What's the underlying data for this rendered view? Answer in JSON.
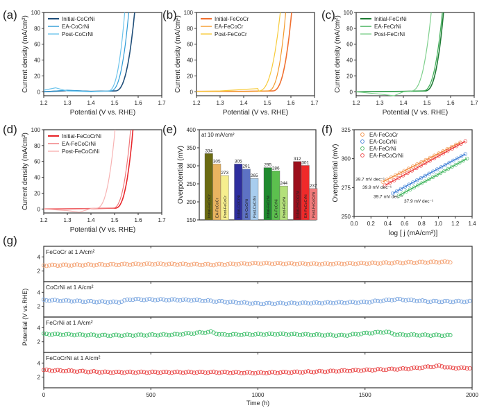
{
  "figure": {
    "panel_labels": [
      "(a)",
      "(b)",
      "(c)",
      "(d)",
      "(e)",
      "(f)",
      "(g)"
    ]
  },
  "chart_data": [
    {
      "id": "a",
      "panel_label": "(a)",
      "type": "line",
      "title": "",
      "xlabel": "Potential (V vs. RHE)",
      "ylabel": "Current density (mA/cm²)",
      "xlim": [
        1.2,
        1.7
      ],
      "ylim": [
        -5,
        100
      ],
      "xticks": [
        1.2,
        1.3,
        1.4,
        1.5,
        1.6,
        1.7
      ],
      "yticks": [
        0,
        20,
        40,
        60,
        80,
        100
      ],
      "grid": false,
      "legend_position": "top-left",
      "series": [
        {
          "name": "Initial-CoCrNi",
          "color": "#1f4e79",
          "onset": 1.5,
          "end": 1.585,
          "low": [
            [
              1.2,
              0
            ],
            [
              1.3,
              1.5
            ],
            [
              1.4,
              0.5
            ],
            [
              1.5,
              1
            ]
          ]
        },
        {
          "name": "EA-CoCrNi",
          "color": "#2e9bd6",
          "onset": 1.48,
          "end": 1.56,
          "low": [
            [
              1.2,
              0
            ],
            [
              1.3,
              2
            ],
            [
              1.4,
              0.5
            ],
            [
              1.48,
              1
            ]
          ]
        },
        {
          "name": "Post-CoCrNi",
          "color": "#6cc4ec",
          "onset": 1.47,
          "end": 1.543,
          "low": [
            [
              1.2,
              2
            ],
            [
              1.25,
              5
            ],
            [
              1.3,
              1
            ],
            [
              1.4,
              0
            ],
            [
              1.47,
              1
            ]
          ]
        }
      ]
    },
    {
      "id": "b",
      "panel_label": "(b)",
      "type": "line",
      "title": "",
      "xlabel": "Potential (V vs. RHE)",
      "ylabel": "Current density (mA/cm²)",
      "xlim": [
        1.2,
        1.7
      ],
      "ylim": [
        -5,
        100
      ],
      "xticks": [
        1.2,
        1.3,
        1.4,
        1.5,
        1.6,
        1.7
      ],
      "yticks": [
        0,
        20,
        40,
        60,
        80,
        100
      ],
      "grid": false,
      "legend_position": "top-left",
      "series": [
        {
          "name": "Initial-FeCoCr",
          "color": "#f07030",
          "onset": 1.52,
          "end": 1.603,
          "low": [
            [
              1.2,
              0.5
            ],
            [
              1.4,
              0.5
            ],
            [
              1.52,
              1
            ]
          ]
        },
        {
          "name": "EA-FeCoCr",
          "color": "#f49a2a",
          "onset": 1.5,
          "end": 1.578,
          "low": [
            [
              1.2,
              0.5
            ],
            [
              1.4,
              0.5
            ],
            [
              1.5,
              1
            ]
          ]
        },
        {
          "name": "Post-FeCoCr",
          "color": "#f7cb3a",
          "onset": 1.46,
          "end": 1.555,
          "low": [
            [
              1.2,
              0.5
            ],
            [
              1.3,
              1
            ],
            [
              1.4,
              3
            ],
            [
              1.46,
              4
            ]
          ]
        }
      ]
    },
    {
      "id": "c",
      "panel_label": "(c)",
      "type": "line",
      "title": "",
      "xlabel": "Potential (V vs. RHE)",
      "ylabel": "Current density (mA/cm²)",
      "xlim": [
        1.2,
        1.7
      ],
      "ylim": [
        -5,
        100
      ],
      "xticks": [
        1.2,
        1.3,
        1.4,
        1.5,
        1.6,
        1.7
      ],
      "yticks": [
        0,
        20,
        40,
        60,
        80,
        100
      ],
      "grid": false,
      "legend_position": "top-left",
      "series": [
        {
          "name": "Initial-FeCrNi",
          "color": "#1e7b34",
          "onset": 1.49,
          "end": 1.57,
          "low": [
            [
              1.2,
              0
            ],
            [
              1.4,
              0.5
            ],
            [
              1.49,
              1
            ]
          ]
        },
        {
          "name": "EA-FeCrNi",
          "color": "#3cae55",
          "onset": 1.48,
          "end": 1.565,
          "low": [
            [
              1.2,
              0
            ],
            [
              1.4,
              0.5
            ],
            [
              1.48,
              1
            ]
          ]
        },
        {
          "name": "Post-FeCrNi",
          "color": "#7fd08d",
          "onset": 1.43,
          "end": 1.518,
          "low": [
            [
              1.2,
              0
            ],
            [
              1.3,
              -3
            ],
            [
              1.36,
              -5
            ],
            [
              1.4,
              0
            ],
            [
              1.43,
              0.5
            ]
          ]
        }
      ]
    },
    {
      "id": "d",
      "panel_label": "(d)",
      "type": "line",
      "title": "",
      "xlabel": "Potential (V vs. RHE)",
      "ylabel": "Current density (mA/cm²)",
      "xlim": [
        1.2,
        1.7
      ],
      "ylim": [
        -5,
        100
      ],
      "xticks": [
        1.2,
        1.3,
        1.4,
        1.5,
        1.6,
        1.7
      ],
      "yticks": [
        0,
        20,
        40,
        60,
        80,
        100
      ],
      "grid": false,
      "legend_position": "top-left",
      "series": [
        {
          "name": "Initial-FeCoCrNi",
          "color": "#e8262b",
          "onset": 1.5,
          "end": 1.578,
          "low": [
            [
              1.2,
              0
            ],
            [
              1.4,
              0.5
            ],
            [
              1.5,
              1
            ]
          ]
        },
        {
          "name": "EA-FeCoCrNi",
          "color": "#f0777a",
          "onset": 1.49,
          "end": 1.568,
          "low": [
            [
              1.2,
              0
            ],
            [
              1.4,
              0.5
            ],
            [
              1.49,
              1
            ]
          ]
        },
        {
          "name": "Post-FeCoCrNi",
          "color": "#f7b3b3",
          "onset": 1.42,
          "end": 1.502,
          "low": [
            [
              1.2,
              0
            ],
            [
              1.3,
              -2
            ],
            [
              1.35,
              -4
            ],
            [
              1.4,
              0.5
            ],
            [
              1.42,
              1
            ]
          ]
        }
      ]
    },
    {
      "id": "e",
      "panel_label": "(e)",
      "type": "bar",
      "title": "",
      "annotation": "at 10 mA/cm²",
      "xlabel": "",
      "ylabel": "Overpotential (mV)",
      "ylim": [
        150,
        400
      ],
      "yticks": [
        150,
        200,
        250,
        300,
        350,
        400
      ],
      "grid": false,
      "groups": [
        {
          "name": "FeCoCr",
          "bars": [
            {
              "label": "Initial-FeCoCr",
              "value": 334,
              "color": "#6b6b12"
            },
            {
              "label": "EA-FeCoCr",
              "value": 305,
              "color": "#e9b460"
            },
            {
              "label": "Post-FeCoCr",
              "value": 273,
              "color": "#f6ee8e"
            }
          ]
        },
        {
          "name": "CoCrNi",
          "bars": [
            {
              "label": "Initial-CoCrNi",
              "value": 305,
              "color": "#2e2e9e"
            },
            {
              "label": "EA-CoCrNi",
              "value": 291,
              "color": "#5d72c4"
            },
            {
              "label": "Post-CoCrNi",
              "value": 265,
              "color": "#a8cdee"
            }
          ]
        },
        {
          "name": "FeCrNi",
          "bars": [
            {
              "label": "Initial-FeCrNi",
              "value": 295,
              "color": "#1f8a2e"
            },
            {
              "label": "EA-FeCrNi",
              "value": 286,
              "color": "#5cc04e"
            },
            {
              "label": "Post-FeCrNi",
              "value": 244,
              "color": "#b4e07a"
            }
          ]
        },
        {
          "name": "FeCoCrNi",
          "bars": [
            {
              "label": "Initial-FeCoCrNi",
              "value": 312,
              "color": "#9c0f1c"
            },
            {
              "label": "EA-FeCoCrNi",
              "value": 301,
              "color": "#ef2a2a"
            },
            {
              "label": "Post-FeCoCrNi",
              "value": 237,
              "color": "#f07a7a"
            }
          ]
        }
      ]
    },
    {
      "id": "f",
      "panel_label": "(f)",
      "type": "scatter",
      "title": "",
      "xlabel": "log [ j (mA/cm²)]",
      "ylabel": "Overpotential (mV)",
      "xlim": [
        0.0,
        1.4
      ],
      "ylim": [
        250,
        325
      ],
      "xticks": [
        0.0,
        0.2,
        0.4,
        0.6,
        0.8,
        1.0,
        1.2,
        1.4
      ],
      "yticks": [
        250,
        275,
        300,
        325
      ],
      "grid": false,
      "legend_position": "top-left",
      "series": [
        {
          "name": "EA-FeCoCr",
          "color": "#f08a3c",
          "slope_label": "39.7 mV dec⁻¹",
          "x_range": [
            0.34,
            1.26
          ],
          "y_range": [
            280,
            314
          ]
        },
        {
          "name": "EA-CoCrNi",
          "color": "#3f7fd6",
          "slope_label": "39.7 mV dec⁻¹",
          "x_range": [
            0.46,
            1.32
          ],
          "y_range": [
            270,
            304
          ]
        },
        {
          "name": "EA-FeCrNi",
          "color": "#3cb35a",
          "slope_label": "37.9 mV dec⁻¹",
          "x_range": [
            0.53,
            1.34
          ],
          "y_range": [
            268,
            300
          ]
        },
        {
          "name": "EA-FeCoCrNi",
          "color": "#ec3b3b",
          "slope_label": "39.9 mV dec⁻¹",
          "x_range": [
            0.37,
            1.32
          ],
          "y_range": [
            277,
            315
          ]
        }
      ]
    },
    {
      "id": "g",
      "panel_label": "(g)",
      "type": "scatter",
      "title": "",
      "xlabel": "Time (h)",
      "ylabel": "Potential (V vs.RHE)",
      "xlim": [
        0,
        2000
      ],
      "xticks": [
        0,
        500,
        1000,
        1500,
        2000
      ],
      "ylim": [
        0.5,
        5.5
      ],
      "yticks": [
        2,
        4
      ],
      "grid": false,
      "subplots": [
        {
          "name": "FeCoCr at 1 A/cm²",
          "color": "#f4a273",
          "end_time": 1900,
          "profile": [
            [
              0,
              2.8
            ],
            [
              300,
              2.9
            ],
            [
              500,
              3.0
            ],
            [
              800,
              2.9
            ],
            [
              1000,
              3.1
            ],
            [
              1300,
              3.0
            ],
            [
              1500,
              3.1
            ],
            [
              1700,
              3.2
            ],
            [
              1900,
              3.3
            ]
          ]
        },
        {
          "name": "CoCrNi at 1 A/cm²",
          "color": "#7aa6e0",
          "end_time": 2000,
          "profile": [
            [
              0,
              2.9
            ],
            [
              200,
              2.7
            ],
            [
              350,
              2.6
            ],
            [
              400,
              3.0
            ],
            [
              700,
              2.9
            ],
            [
              1000,
              2.4
            ],
            [
              1300,
              2.5
            ],
            [
              1500,
              2.6
            ],
            [
              1650,
              3.0
            ],
            [
              1800,
              2.7
            ],
            [
              2000,
              2.7
            ]
          ]
        },
        {
          "name": "FeCrNi at 1 A/cm²",
          "color": "#3fbf6b",
          "end_time": 1900,
          "profile": [
            [
              0,
              3.1
            ],
            [
              300,
              2.9
            ],
            [
              600,
              3.0
            ],
            [
              780,
              3.4
            ],
            [
              830,
              3.0
            ],
            [
              1100,
              3.1
            ],
            [
              1400,
              2.9
            ],
            [
              1500,
              3.2
            ],
            [
              1600,
              3.4
            ],
            [
              1650,
              3.0
            ],
            [
              1900,
              2.9
            ]
          ]
        },
        {
          "name": "FeCoCrNi at 1 A/cm²",
          "color": "#e94444",
          "end_time": 2000,
          "profile": [
            [
              0,
              3.0
            ],
            [
              300,
              2.7
            ],
            [
              600,
              2.7
            ],
            [
              800,
              2.7
            ],
            [
              1000,
              2.6
            ],
            [
              1300,
              2.8
            ],
            [
              1500,
              3.0
            ],
            [
              1700,
              3.2
            ],
            [
              1850,
              3.6
            ],
            [
              1900,
              3.3
            ],
            [
              2000,
              3.3
            ]
          ]
        }
      ]
    }
  ]
}
